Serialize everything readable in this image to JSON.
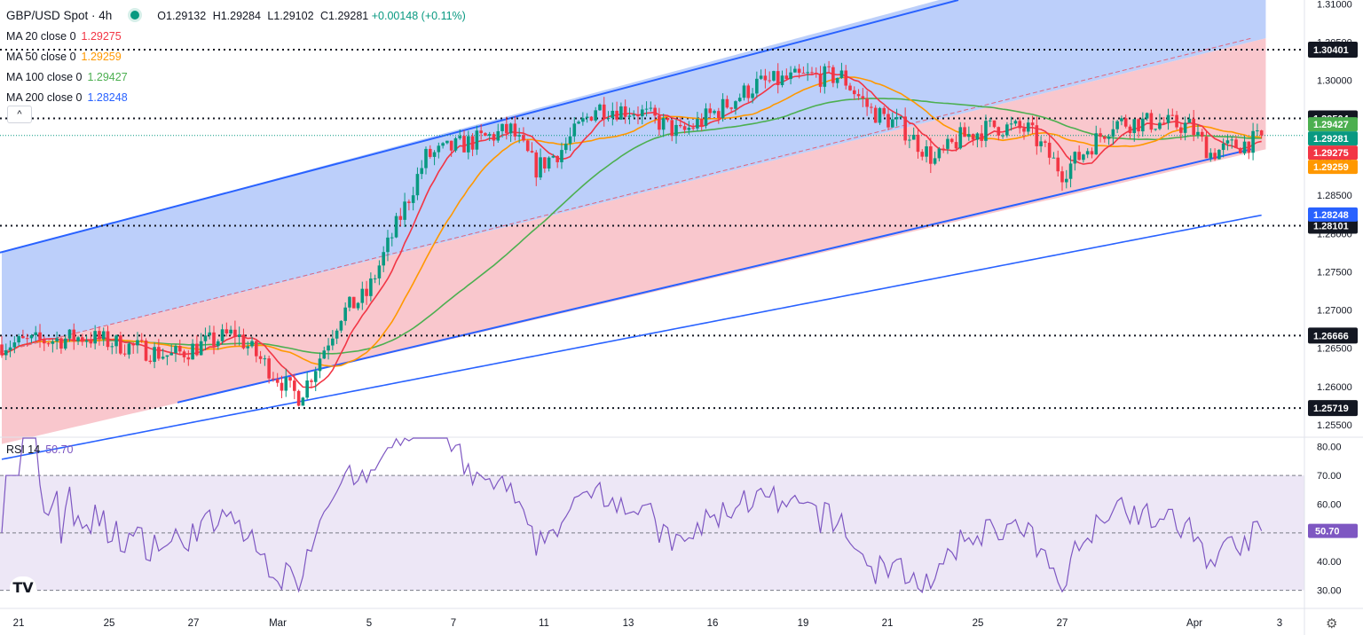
{
  "header": {
    "symbol_title": "GBP/USD Spot · 4h",
    "open": "O1.29132",
    "high": "H1.29284",
    "low": "L1.29102",
    "close": "C1.29281",
    "change": "+0.00148 (+0.11%)"
  },
  "moving_averages": [
    {
      "label": "MA 20 close 0",
      "value": "1.29275",
      "color": "#f23645"
    },
    {
      "label": "MA 50 close 0",
      "value": "1.29259",
      "color": "#ff9800"
    },
    {
      "label": "MA 100 close 0",
      "value": "1.29427",
      "color": "#4caf50"
    },
    {
      "label": "MA 200 close 0",
      "value": "1.28248",
      "color": "#2962ff"
    }
  ],
  "collapse_glyph": "^",
  "rsi": {
    "label": "RSI 14",
    "value": "50.70"
  },
  "logo_text": "TV",
  "settings_glyph": "⚙",
  "chart_data": {
    "type": "candlestick",
    "price_axis": {
      "range": [
        1.2535,
        1.3105
      ],
      "ticks": [
        "1.31000",
        "1.30500",
        "1.30000",
        "1.29500",
        "1.29000",
        "1.28500",
        "1.28000",
        "1.27500",
        "1.27000",
        "1.26500",
        "1.26000",
        "1.25500"
      ]
    },
    "rsi_axis": {
      "range": [
        24,
        83
      ],
      "ticks": [
        "80.00",
        "70.00",
        "60.00",
        "40.00",
        "30.00"
      ]
    },
    "time_axis": {
      "ticks": [
        "21",
        "25",
        "27",
        "Mar",
        "5",
        "7",
        "11",
        "13",
        "16",
        "19",
        "21",
        "25",
        "27",
        "Apr",
        "3"
      ]
    },
    "horizontal_levels": [
      {
        "value": 1.30401,
        "label": "1.30401"
      },
      {
        "value": 1.29504,
        "label": "1.29504"
      },
      {
        "value": 1.28101,
        "label": "1.28101"
      },
      {
        "value": 1.26666,
        "label": "1.26666"
      },
      {
        "value": 1.25719,
        "label": "1.25719"
      }
    ],
    "price_badges": [
      {
        "value": 1.29427,
        "label": "1.29427",
        "color": "#4caf50"
      },
      {
        "value": 1.29281,
        "label": "1.29281",
        "color": "#089981"
      },
      {
        "value": 1.29275,
        "label": "1.29275",
        "color": "#f23645"
      },
      {
        "value": 1.29259,
        "label": "1.29259",
        "color": "#ff9800"
      },
      {
        "value": 1.28248,
        "label": "1.28248",
        "color": "#2962ff"
      }
    ],
    "current_price": 1.29281,
    "rsi_current": 50.7,
    "colors": {
      "up": "#089981",
      "down": "#f23645",
      "channel_upper_fill": "#b8ccfa",
      "channel_lower_fill": "#f9c4ca",
      "rsi_line": "#7e57c2",
      "rsi_band": "#ede7f6"
    }
  }
}
